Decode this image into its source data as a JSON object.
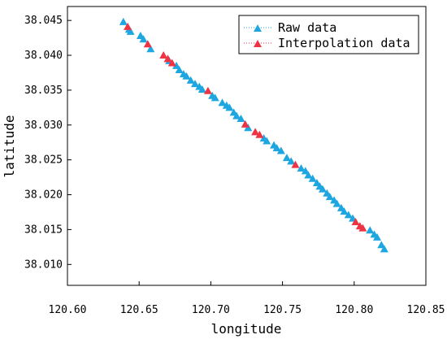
{
  "chart_data": {
    "type": "scatter",
    "xlabel": "longitude",
    "ylabel": "latitude",
    "xlim": [
      120.6,
      120.85
    ],
    "ylim": [
      38.007,
      38.047
    ],
    "x_ticks": [
      "120.60",
      "120.65",
      "120.70",
      "120.75",
      "120.80",
      "120.85"
    ],
    "y_ticks": [
      "38.010",
      "38.015",
      "38.020",
      "38.025",
      "38.030",
      "38.035",
      "38.040",
      "38.045"
    ],
    "x_tick_values": [
      120.6,
      120.65,
      120.7,
      120.75,
      120.8,
      120.85
    ],
    "y_tick_values": [
      38.01,
      38.015,
      38.02,
      38.025,
      38.03,
      38.035,
      38.04,
      38.045
    ],
    "legend_position": "top-right",
    "grid": false,
    "series": [
      {
        "name": "Raw data",
        "color": "#1ea6e0",
        "marker": "triangle",
        "points": [
          [
            120.639,
            38.0448
          ],
          [
            120.643,
            38.0437
          ],
          [
            120.644,
            38.0434
          ],
          [
            120.651,
            38.0428
          ],
          [
            120.653,
            38.0423
          ],
          [
            120.658,
            38.0409
          ],
          [
            120.671,
            38.0392
          ],
          [
            120.676,
            38.0385
          ],
          [
            120.678,
            38.0379
          ],
          [
            120.681,
            38.0373
          ],
          [
            120.683,
            38.037
          ],
          [
            120.686,
            38.0364
          ],
          [
            120.689,
            38.0359
          ],
          [
            120.692,
            38.0355
          ],
          [
            120.694,
            38.0351
          ],
          [
            120.701,
            38.0342
          ],
          [
            120.703,
            38.0339
          ],
          [
            120.708,
            38.0332
          ],
          [
            120.711,
            38.0328
          ],
          [
            120.713,
            38.0325
          ],
          [
            120.716,
            38.0318
          ],
          [
            120.718,
            38.0313
          ],
          [
            120.721,
            38.0309
          ],
          [
            120.726,
            38.0296
          ],
          [
            120.737,
            38.0281
          ],
          [
            120.739,
            38.0277
          ],
          [
            120.744,
            38.0271
          ],
          [
            120.746,
            38.0267
          ],
          [
            120.749,
            38.0263
          ],
          [
            120.753,
            38.0253
          ],
          [
            120.756,
            38.0248
          ],
          [
            120.763,
            38.0238
          ],
          [
            120.766,
            38.0234
          ],
          [
            120.768,
            38.0228
          ],
          [
            120.771,
            38.0223
          ],
          [
            120.774,
            38.0217
          ],
          [
            120.776,
            38.0212
          ],
          [
            120.778,
            38.0208
          ],
          [
            120.781,
            38.0202
          ],
          [
            120.783,
            38.0197
          ],
          [
            120.786,
            38.0192
          ],
          [
            120.788,
            38.0187
          ],
          [
            120.791,
            38.0181
          ],
          [
            120.793,
            38.0176
          ],
          [
            120.796,
            38.0171
          ],
          [
            120.799,
            38.0166
          ],
          [
            120.811,
            38.0149
          ],
          [
            120.814,
            38.0143
          ],
          [
            120.816,
            38.0139
          ],
          [
            120.819,
            38.0128
          ],
          [
            120.821,
            38.0122
          ]
        ]
      },
      {
        "name": "Interpolation data",
        "color": "#ee3344",
        "marker": "triangle",
        "points": [
          [
            120.642,
            38.0441
          ],
          [
            120.656,
            38.0416
          ],
          [
            120.667,
            38.04
          ],
          [
            120.67,
            38.0395
          ],
          [
            120.673,
            38.0389
          ],
          [
            120.698,
            38.0349
          ],
          [
            120.724,
            38.0301
          ],
          [
            120.731,
            38.029
          ],
          [
            120.734,
            38.0286
          ],
          [
            120.759,
            38.0243
          ],
          [
            120.801,
            38.0161
          ],
          [
            120.804,
            38.0155
          ],
          [
            120.806,
            38.0152
          ]
        ]
      }
    ]
  }
}
